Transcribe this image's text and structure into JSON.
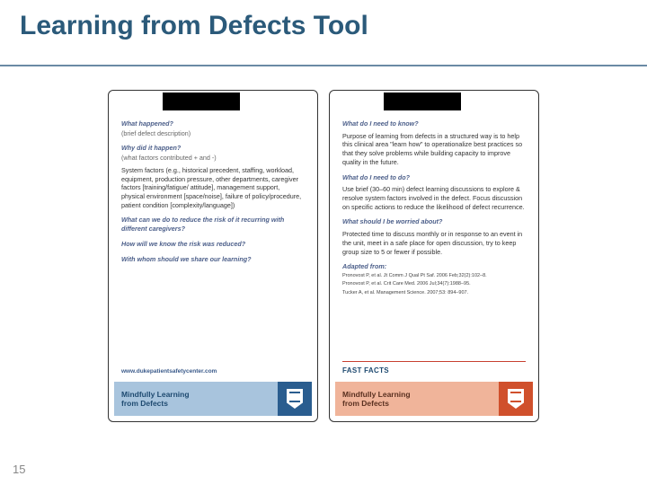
{
  "slide": {
    "title": "Learning from Defects Tool",
    "title_color": "#2b5a7a",
    "page_number": "15"
  },
  "card_left": {
    "q1": "What happened?",
    "q1_sub": "(brief defect description)",
    "q2": "Why did it happen?",
    "q2_sub": "(what factors contributed + and -)",
    "factors": "System factors (e.g., historical precedent, staffing, workload, equipment, production pressure, other departments, caregiver factors [training/fatigue/ attitude], management support, physical environment [space/noise], failure of policy/procedure, patient condition [complexity/language])",
    "q3": "What can we do to reduce the risk of it recurring with different caregivers?",
    "q4": "How will we know the risk was reduced?",
    "q5": "With whom should we share our learning?",
    "url": "www.dukepatientsafetycenter.com",
    "footer_line1": "Mindfully Learning",
    "footer_line2": "from Defects",
    "footer_bg": "#a8c4dd",
    "footer_accent": "#2a5d8f"
  },
  "card_right": {
    "q1": "What do I need to know?",
    "a1": "Purpose of learning from defects in a structured way is to help this clinical area \"learn how\" to operationalize best practices so that they solve problems while building capacity to improve quality in the future.",
    "q2": "What do I need to do?",
    "a2": "Use brief (30–60 min) defect learning discussions to explore & resolve system factors involved in the defect. Focus discussion on specific actions to reduce the likelihood of defect recurrence.",
    "q3": "What should I be worried about?",
    "a3": "Protected time to discuss monthly or in response to an event in the unit, meet in a safe place for open discussion, try to keep group size to 5 or fewer if possible.",
    "adapted": "Adapted from:",
    "c1": "Pronovost P, et al. Jt Comm J Qual Pt Saf. 2006 Feb;32(2):102–8.",
    "c2": "Pronovost P, et al. Crit Care Med. 2006 Jul;34(7):1988–95.",
    "c3": "Tucker A, et al. Management Science. 2007;53: 894–907.",
    "fast_facts": "FAST FACTS",
    "footer_line1": "Mindfully Learning",
    "footer_line2": "from Defects",
    "footer_bg": "#f0b49a",
    "footer_accent": "#d0502c"
  }
}
